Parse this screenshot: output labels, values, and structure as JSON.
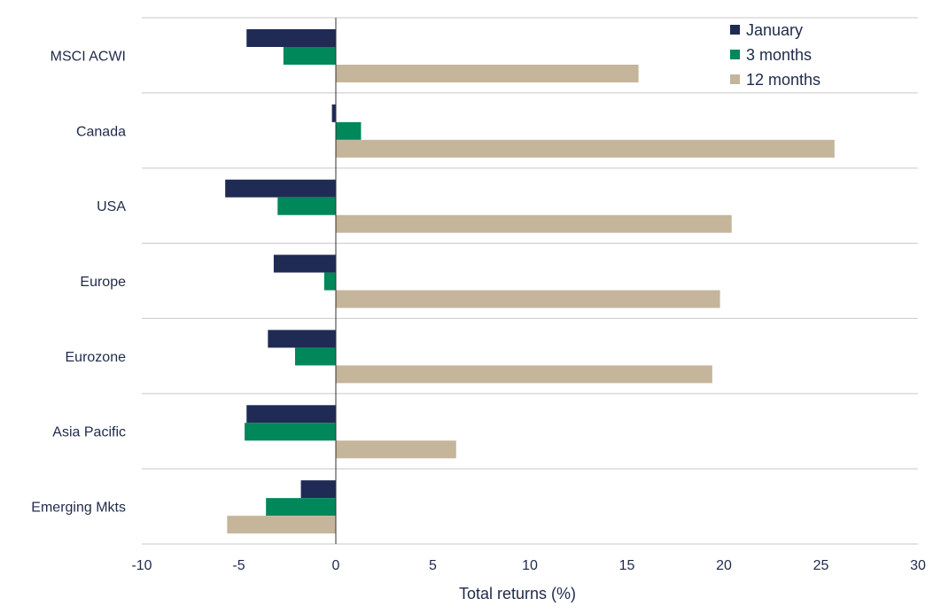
{
  "chart_data": {
    "type": "bar",
    "orientation": "horizontal",
    "title": "",
    "xlabel": "Total returns (%)",
    "ylabel": "",
    "xlim": [
      -10,
      30
    ],
    "xticks": [
      -10,
      -5,
      0,
      5,
      10,
      15,
      20,
      25,
      30
    ],
    "categories": [
      "MSCI ACWI",
      "Canada",
      "USA",
      "Europe",
      "Eurozone",
      "Asia Pacific",
      "Emerging Mkts"
    ],
    "series": [
      {
        "name": "January",
        "color": "#1f2a55",
        "values": [
          -4.6,
          -0.2,
          -5.7,
          -3.2,
          -3.5,
          -4.6,
          -1.8
        ]
      },
      {
        "name": "3 months",
        "color": "#00875a",
        "values": [
          -2.7,
          1.3,
          -3.0,
          -0.6,
          -2.1,
          -4.7,
          -3.6
        ]
      },
      {
        "name": "12 months",
        "color": "#c4b59b",
        "values": [
          15.6,
          25.7,
          20.4,
          19.8,
          19.4,
          6.2,
          -5.6
        ]
      }
    ],
    "legend_position": "top-right",
    "grid": "horizontal separators between categories"
  }
}
